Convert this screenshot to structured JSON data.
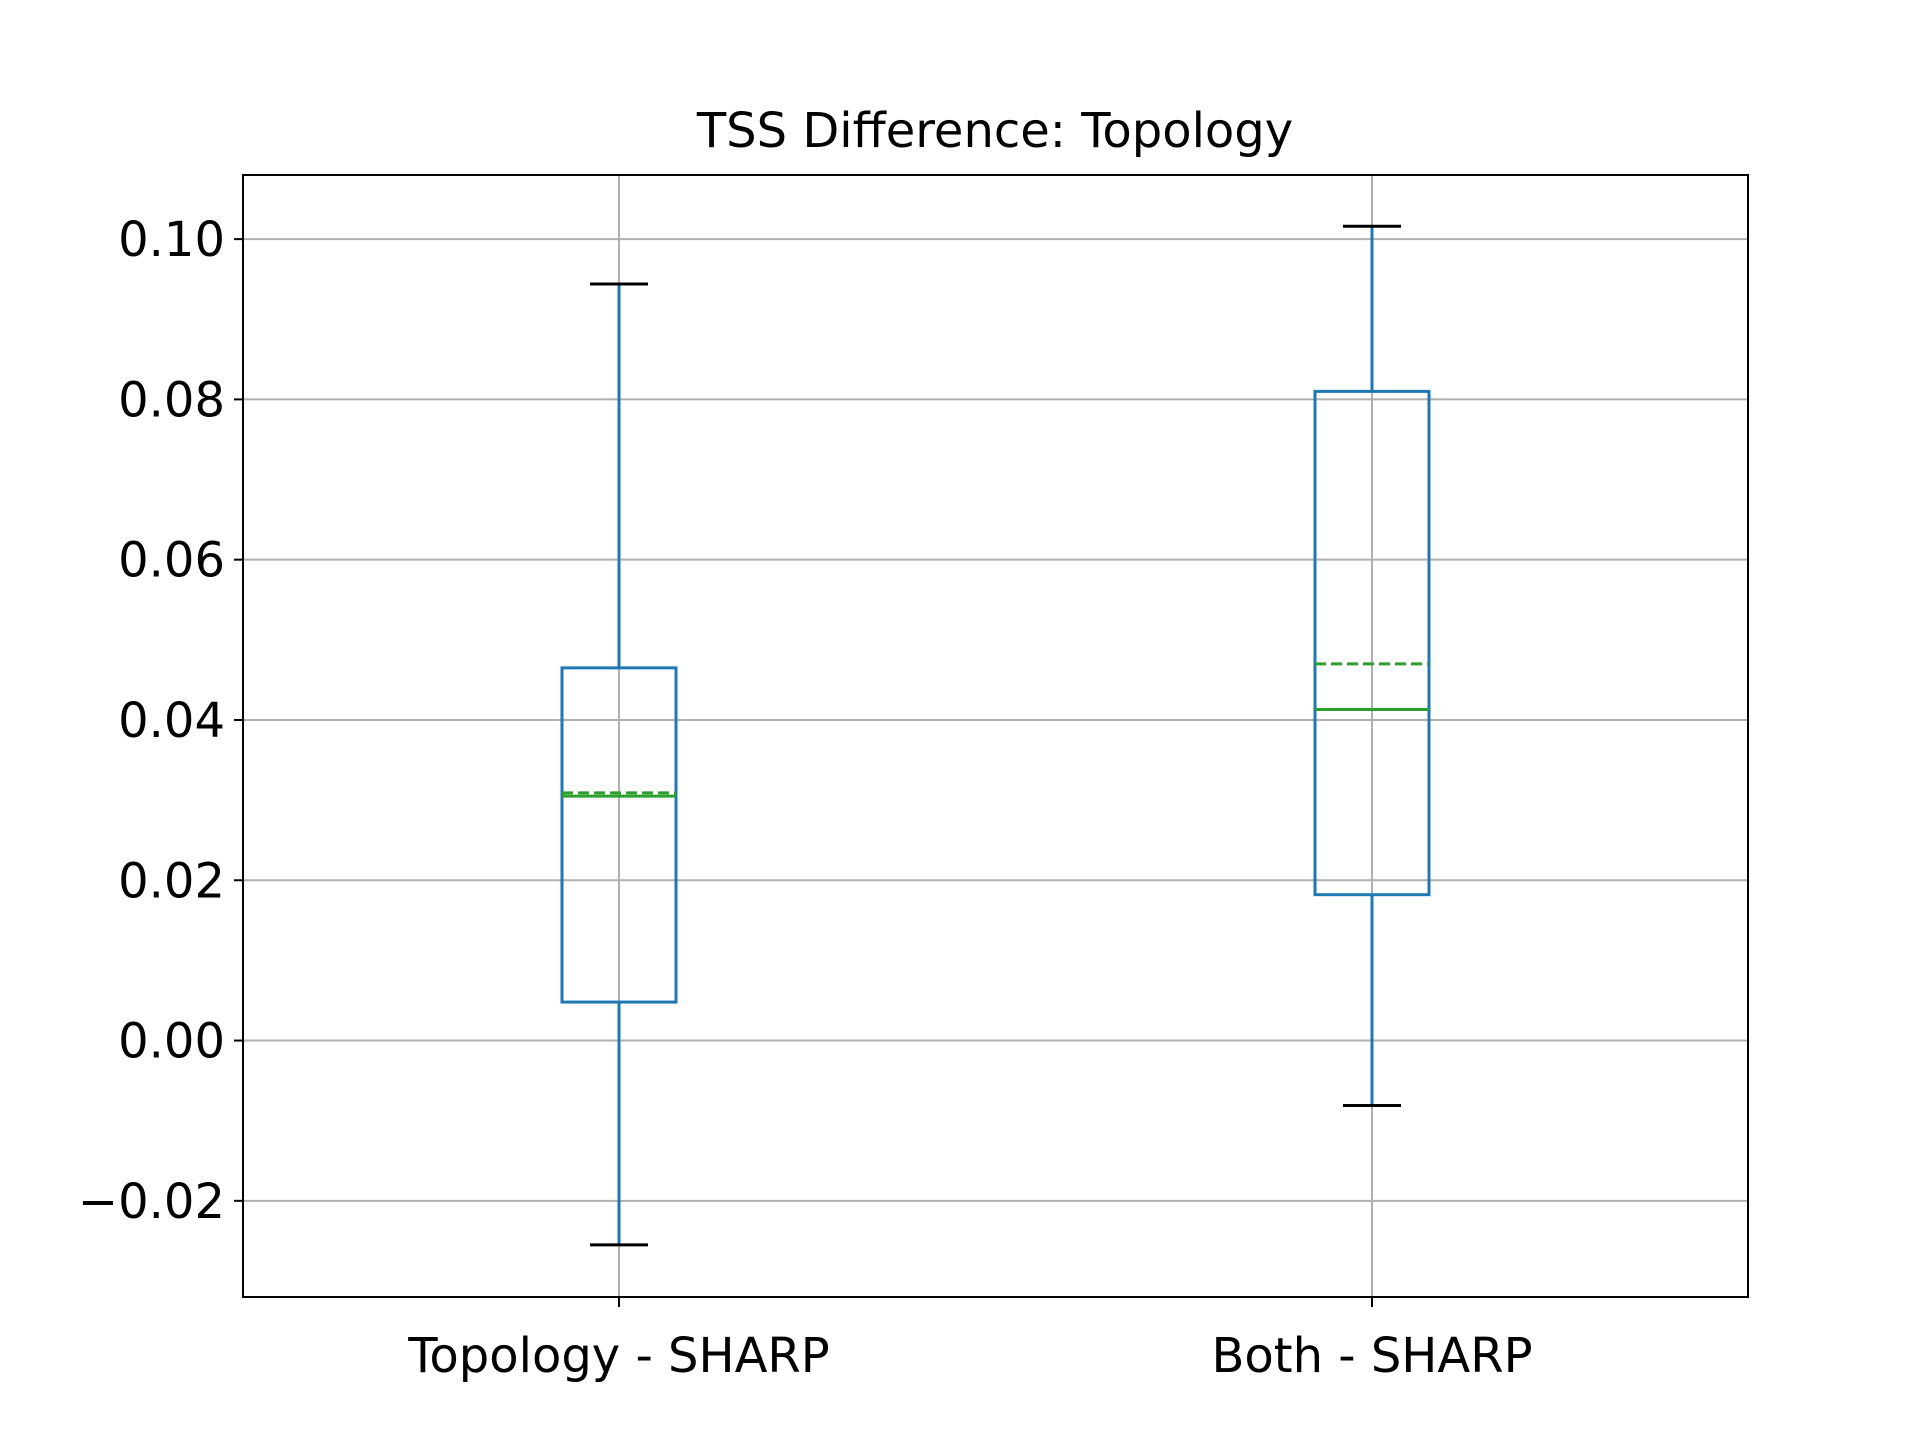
{
  "chart_data": {
    "type": "box",
    "title": "TSS Difference: Topology",
    "xlabel": "",
    "ylabel": "",
    "ylim": [
      -0.032,
      0.108
    ],
    "yticks": [
      "0.10",
      "0.08",
      "0.06",
      "0.04",
      "0.02",
      "0.00",
      "−0.02"
    ],
    "ytick_values": [
      0.1,
      0.08,
      0.06,
      0.04,
      0.02,
      0.0,
      -0.02
    ],
    "grid": true,
    "categories": [
      "Topology - SHARP",
      "Both - SHARP"
    ],
    "boxes": [
      {
        "name": "Topology - SHARP",
        "whisker_low": -0.0255,
        "q1": 0.0048,
        "median": 0.0305,
        "mean": 0.0309,
        "q3": 0.0465,
        "whisker_high": 0.0944
      },
      {
        "name": "Both - SHARP",
        "whisker_low": -0.0081,
        "q1": 0.0182,
        "median": 0.0413,
        "mean": 0.047,
        "q3": 0.081,
        "whisker_high": 0.1016
      }
    ],
    "colors": {
      "box": "#1f77b4",
      "median": "#2ca02c",
      "mean": "#2ca02c",
      "whisker_cap": "#000000",
      "grid": "#b0b0b0"
    }
  }
}
